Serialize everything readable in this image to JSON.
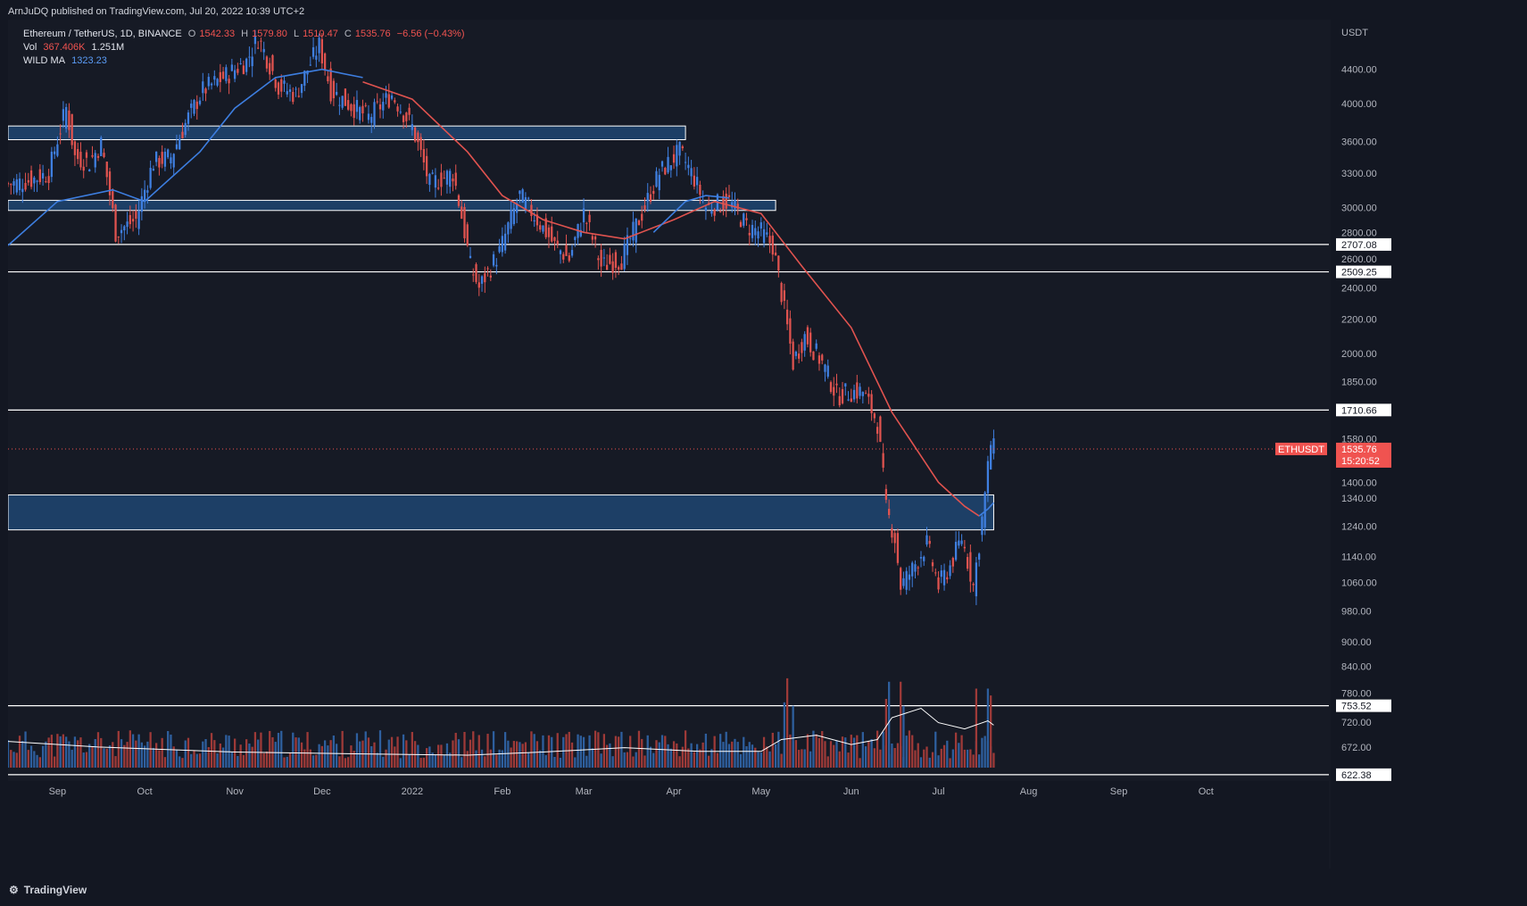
{
  "header": {
    "published": "ArnJuDQ published on TradingView.com, Jul 20, 2022 10:39 UTC+2"
  },
  "legend": {
    "symbol": "Ethereum / TetherUS, 1D, BINANCE",
    "o_label": "O",
    "o_value": "1542.33",
    "h_label": "H",
    "h_value": "1579.80",
    "l_label": "L",
    "l_value": "1510.47",
    "c_label": "C",
    "c_value": "1535.76",
    "change": "−6.56 (−0.43%)",
    "vol_label": "Vol",
    "vol_value": "367.406K",
    "vol_ma": "1.251M",
    "ma_label": "WILD MA",
    "ma_value": "1323.23"
  },
  "footer": {
    "brand": "TradingView"
  },
  "colors": {
    "background": "#131722",
    "up": "#3f7fe0",
    "down": "#e0534f",
    "ma_fast": "#3d7ee0",
    "ma_slow": "#e0534f",
    "zone_fill": "#1d3f66",
    "level_line": "#ffffff",
    "price_tag": "#f05350"
  },
  "chart_data": {
    "type": "candlestick",
    "symbol": "ETHUSDT",
    "price_scale": "log",
    "currency": "USDT",
    "y_ticks": [
      4400,
      4000,
      3600,
      3300,
      3000,
      2800,
      2600,
      2400,
      2200,
      2000,
      1850,
      1580,
      1400,
      1340,
      1240,
      1140,
      1060,
      980,
      900,
      840,
      780,
      720,
      672
    ],
    "y_tick_labels": [
      "4400.00",
      "4000.00",
      "3600.00",
      "3300.00",
      "3000.00",
      "2800.00",
      "2600.00",
      "2400.00",
      "2200.00",
      "2000.00",
      "1850.00",
      "1580.00",
      "1400.00",
      "1340.00",
      "1240.00",
      "1140.00",
      "1060.00",
      "980.00",
      "900.00",
      "840.00",
      "780.00",
      "720.00",
      "672.00"
    ],
    "x_tick_labels": [
      "Sep",
      "Oct",
      "Nov",
      "Dec",
      "2022",
      "Feb",
      "Mar",
      "Apr",
      "May",
      "Jun",
      "Jul",
      "Aug",
      "Sep",
      "Oct"
    ],
    "x_range": [
      "2021-08-15",
      "2022-10-31"
    ],
    "y_range": [
      610,
      5000
    ],
    "last_price": {
      "label": "ETHUSDT",
      "value": "1535.76",
      "countdown": "15:20:52",
      "price": 1535.76
    },
    "horizontal_levels": [
      {
        "price": 2707.08,
        "label": "2707.08"
      },
      {
        "price": 2509.25,
        "label": "2509.25"
      },
      {
        "price": 1710.66,
        "label": "1710.66"
      },
      {
        "price": 753.52,
        "label": "753.52"
      },
      {
        "price": 622.38,
        "label": "622.38"
      }
    ],
    "zones": [
      {
        "from_date": "2021-08-15",
        "to_date": "2022-04-05",
        "low": 3620,
        "high": 3760
      },
      {
        "from_date": "2021-08-15",
        "to_date": "2022-05-06",
        "low": 2975,
        "high": 3060
      },
      {
        "from_date": "2021-08-15",
        "to_date": "2022-07-20",
        "low": 1227,
        "high": 1352
      }
    ],
    "close_path": [
      [
        "2021-08-15",
        3200
      ],
      [
        "2021-08-22",
        3230
      ],
      [
        "2021-08-29",
        3300
      ],
      [
        "2021-09-04",
        3950
      ],
      [
        "2021-09-07",
        3450
      ],
      [
        "2021-09-12",
        3400
      ],
      [
        "2021-09-16",
        3580
      ],
      [
        "2021-09-21",
        2800
      ],
      [
        "2021-09-28",
        2900
      ],
      [
        "2021-10-04",
        3400
      ],
      [
        "2021-10-10",
        3450
      ],
      [
        "2021-10-16",
        3850
      ],
      [
        "2021-10-21",
        4150
      ],
      [
        "2021-10-28",
        4300
      ],
      [
        "2021-11-05",
        4500
      ],
      [
        "2021-11-09",
        4800
      ],
      [
        "2021-11-16",
        4200
      ],
      [
        "2021-11-22",
        4100
      ],
      [
        "2021-11-30",
        4700
      ],
      [
        "2021-12-04",
        4150
      ],
      [
        "2021-12-10",
        4000
      ],
      [
        "2021-12-17",
        3850
      ],
      [
        "2021-12-25",
        4100
      ],
      [
        "2022-01-01",
        3750
      ],
      [
        "2022-01-07",
        3200
      ],
      [
        "2022-01-15",
        3300
      ],
      [
        "2022-01-21",
        2550
      ],
      [
        "2022-01-24",
        2400
      ],
      [
        "2022-01-31",
        2650
      ],
      [
        "2022-02-07",
        3100
      ],
      [
        "2022-02-13",
        2900
      ],
      [
        "2022-02-19",
        2700
      ],
      [
        "2022-02-24",
        2600
      ],
      [
        "2022-03-01",
        2950
      ],
      [
        "2022-03-07",
        2550
      ],
      [
        "2022-03-14",
        2600
      ],
      [
        "2022-03-21",
        2950
      ],
      [
        "2022-03-27",
        3300
      ],
      [
        "2022-04-03",
        3500
      ],
      [
        "2022-04-08",
        3250
      ],
      [
        "2022-04-12",
        3000
      ],
      [
        "2022-04-20",
        3050
      ],
      [
        "2022-04-26",
        2850
      ],
      [
        "2022-05-01",
        2800
      ],
      [
        "2022-05-05",
        2700
      ],
      [
        "2022-05-09",
        2250
      ],
      [
        "2022-05-12",
        1950
      ],
      [
        "2022-05-16",
        2100
      ],
      [
        "2022-05-22",
        1950
      ],
      [
        "2022-05-27",
        1780
      ],
      [
        "2022-06-01",
        1800
      ],
      [
        "2022-06-05",
        1800
      ],
      [
        "2022-06-10",
        1650
      ],
      [
        "2022-06-13",
        1300
      ],
      [
        "2022-06-16",
        1200
      ],
      [
        "2022-06-18",
        1050
      ],
      [
        "2022-06-22",
        1100
      ],
      [
        "2022-06-27",
        1180
      ],
      [
        "2022-07-01",
        1050
      ],
      [
        "2022-07-05",
        1110
      ],
      [
        "2022-07-09",
        1200
      ],
      [
        "2022-07-13",
        1050
      ],
      [
        "2022-07-15",
        1180
      ],
      [
        "2022-07-17",
        1350
      ],
      [
        "2022-07-19",
        1560
      ],
      [
        "2022-07-20",
        1536
      ]
    ],
    "ma_fast": [
      [
        "2021-08-15",
        2700
      ],
      [
        "2021-09-01",
        3050
      ],
      [
        "2021-09-20",
        3150
      ],
      [
        "2021-10-01",
        3050
      ],
      [
        "2021-10-20",
        3500
      ],
      [
        "2021-11-01",
        3950
      ],
      [
        "2021-11-15",
        4300
      ],
      [
        "2021-12-01",
        4400
      ],
      [
        "2021-12-15",
        4300
      ]
    ],
    "ma_slow": [
      [
        "2021-12-15",
        4250
      ],
      [
        "2022-01-01",
        4050
      ],
      [
        "2022-01-20",
        3500
      ],
      [
        "2022-02-01",
        3100
      ],
      [
        "2022-02-15",
        2900
      ],
      [
        "2022-03-01",
        2800
      ],
      [
        "2022-03-15",
        2750
      ],
      [
        "2022-04-01",
        2900
      ],
      [
        "2022-04-15",
        3050
      ],
      [
        "2022-05-01",
        2950
      ],
      [
        "2022-05-15",
        2550
      ],
      [
        "2022-06-01",
        2150
      ],
      [
        "2022-06-15",
        1700
      ],
      [
        "2022-07-01",
        1400
      ],
      [
        "2022-07-10",
        1310
      ],
      [
        "2022-07-15",
        1275
      ]
    ],
    "ma_fast_tail": [
      [
        "2022-03-25",
        2800
      ],
      [
        "2022-04-05",
        3050
      ],
      [
        "2022-04-12",
        3100
      ],
      [
        "2022-04-20",
        3080
      ]
    ],
    "ma_fast_tail2": [
      [
        "2022-07-15",
        1275
      ],
      [
        "2022-07-18",
        1300
      ],
      [
        "2022-07-20",
        1323
      ]
    ],
    "volume": {
      "ma": [
        [
          "2021-08-15",
          0.42
        ],
        [
          "2021-09-15",
          0.33
        ],
        [
          "2021-11-01",
          0.25
        ],
        [
          "2021-12-15",
          0.22
        ],
        [
          "2022-01-20",
          0.2
        ],
        [
          "2022-02-15",
          0.25
        ],
        [
          "2022-03-15",
          0.32
        ],
        [
          "2022-04-10",
          0.26
        ],
        [
          "2022-05-01",
          0.26
        ],
        [
          "2022-05-08",
          0.45
        ],
        [
          "2022-05-20",
          0.52
        ],
        [
          "2022-06-01",
          0.37
        ],
        [
          "2022-06-10",
          0.45
        ],
        [
          "2022-06-15",
          0.8
        ],
        [
          "2022-06-25",
          0.95
        ],
        [
          "2022-07-01",
          0.72
        ],
        [
          "2022-07-10",
          0.62
        ],
        [
          "2022-07-18",
          0.75
        ],
        [
          "2022-07-20",
          0.68
        ]
      ],
      "spikes": [
        [
          "2022-05-09",
          0.95
        ],
        [
          "2022-05-10",
          1.3
        ],
        [
          "2022-05-12",
          0.9
        ],
        [
          "2022-06-13",
          1.0
        ],
        [
          "2022-06-14",
          1.25
        ],
        [
          "2022-06-18",
          1.25
        ],
        [
          "2022-06-19",
          0.9
        ],
        [
          "2022-07-14",
          1.15
        ],
        [
          "2022-07-18",
          1.15
        ],
        [
          "2022-07-19",
          1.05
        ]
      ]
    }
  }
}
